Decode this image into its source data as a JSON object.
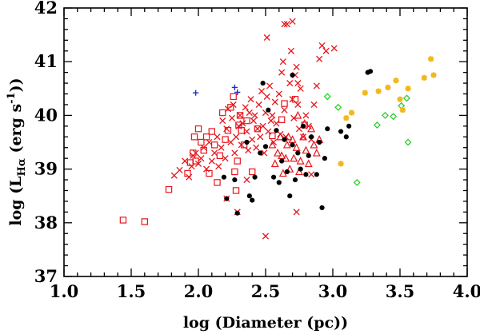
{
  "chart_data": {
    "type": "scatter",
    "title": "",
    "xlabel": "log (Diameter (pc))",
    "ylabel": "log (Lₕα (erg s⁻¹))",
    "ylabel_parts": {
      "prefix": "log (L",
      "sub": "Hα",
      "mid": " (erg s",
      "sup": "-1",
      "suffix": "))"
    },
    "xlim": [
      1.0,
      4.0
    ],
    "ylim": [
      37.0,
      42.0
    ],
    "xticks": [
      1.0,
      1.5,
      2.0,
      2.5,
      3.0,
      3.5,
      4.0
    ],
    "xtick_labels": [
      "1.0",
      "1.5",
      "2.0",
      "2.5",
      "3.0",
      "3.5",
      "4.0"
    ],
    "yticks": [
      37,
      38,
      39,
      40,
      41,
      42
    ],
    "ytick_labels": [
      "37",
      "38",
      "39",
      "40",
      "41",
      "42"
    ],
    "x_minor_step": 0.1,
    "y_minor_step": 0.2,
    "grid": false,
    "series": [
      {
        "name": "red-crosses",
        "marker": "cross",
        "color": "#e8161c",
        "points": [
          [
            1.82,
            38.88
          ],
          [
            1.86,
            38.98
          ],
          [
            1.9,
            39.15
          ],
          [
            1.93,
            38.85
          ],
          [
            1.95,
            39.05
          ],
          [
            1.96,
            39.25
          ],
          [
            1.98,
            39.3
          ],
          [
            2.0,
            39.1
          ],
          [
            2.02,
            39.2
          ],
          [
            2.04,
            39.4
          ],
          [
            2.06,
            39.0
          ],
          [
            2.08,
            39.5
          ],
          [
            2.1,
            39.15
          ],
          [
            2.12,
            39.3
          ],
          [
            2.14,
            39.6
          ],
          [
            2.15,
            39.05
          ],
          [
            2.17,
            39.4
          ],
          [
            2.18,
            39.9
          ],
          [
            2.2,
            39.2
          ],
          [
            2.21,
            39.75
          ],
          [
            2.22,
            40.12
          ],
          [
            2.24,
            39.5
          ],
          [
            2.25,
            39.95
          ],
          [
            2.26,
            40.2
          ],
          [
            2.27,
            39.3
          ],
          [
            2.28,
            39.6
          ],
          [
            2.3,
            39.8
          ],
          [
            2.31,
            40.0
          ],
          [
            2.32,
            39.45
          ],
          [
            2.33,
            39.85
          ],
          [
            2.35,
            40.15
          ],
          [
            2.36,
            39.7
          ],
          [
            2.37,
            39.35
          ],
          [
            2.38,
            40.05
          ],
          [
            2.39,
            40.3
          ],
          [
            2.4,
            39.55
          ],
          [
            2.41,
            39.9
          ],
          [
            2.42,
            40.0
          ],
          [
            2.43,
            39.4
          ],
          [
            2.44,
            39.75
          ],
          [
            2.45,
            40.2
          ],
          [
            2.46,
            39.6
          ],
          [
            2.47,
            40.45
          ],
          [
            2.48,
            39.8
          ],
          [
            2.49,
            39.3
          ],
          [
            2.5,
            40.05
          ],
          [
            2.51,
            40.35
          ],
          [
            2.52,
            39.7
          ],
          [
            2.53,
            40.55
          ],
          [
            2.54,
            39.9
          ],
          [
            2.55,
            40.0
          ],
          [
            2.56,
            39.5
          ],
          [
            2.57,
            40.25
          ],
          [
            2.58,
            39.85
          ],
          [
            2.6,
            40.4
          ],
          [
            2.61,
            39.65
          ],
          [
            2.62,
            40.8
          ],
          [
            2.64,
            40.1
          ],
          [
            2.65,
            39.6
          ],
          [
            2.66,
            41.7
          ],
          [
            2.68,
            40.6
          ],
          [
            2.69,
            41.2
          ],
          [
            2.7,
            40.3
          ],
          [
            2.71,
            39.95
          ],
          [
            2.72,
            40.75
          ],
          [
            2.73,
            40.9
          ],
          [
            2.74,
            40.2
          ],
          [
            2.75,
            39.75
          ],
          [
            2.76,
            40.5
          ],
          [
            2.78,
            39.6
          ],
          [
            2.8,
            40.0
          ],
          [
            2.82,
            39.8
          ],
          [
            2.84,
            39.55
          ],
          [
            2.86,
            40.2
          ],
          [
            2.88,
            40.55
          ],
          [
            2.9,
            41.05
          ],
          [
            2.92,
            41.3
          ],
          [
            2.95,
            41.2
          ],
          [
            3.01,
            41.25
          ],
          [
            2.51,
            41.45
          ],
          [
            2.64,
            41.7
          ],
          [
            2.7,
            41.75
          ],
          [
            2.63,
            41.0
          ],
          [
            2.74,
            40.6
          ],
          [
            2.21,
            38.45
          ],
          [
            2.29,
            38.2
          ],
          [
            2.36,
            38.8
          ],
          [
            2.5,
            37.75
          ],
          [
            2.73,
            38.2
          ],
          [
            2.84,
            38.9
          ]
        ]
      },
      {
        "name": "red-squares",
        "marker": "square",
        "color": "#e8161c",
        "points": [
          [
            1.44,
            38.05
          ],
          [
            1.6,
            38.02
          ],
          [
            1.78,
            38.62
          ],
          [
            1.92,
            38.92
          ],
          [
            1.94,
            39.12
          ],
          [
            1.96,
            39.3
          ],
          [
            1.97,
            39.6
          ],
          [
            1.98,
            39.15
          ],
          [
            2.0,
            39.75
          ],
          [
            2.02,
            39.5
          ],
          [
            2.04,
            39.35
          ],
          [
            2.06,
            39.6
          ],
          [
            2.08,
            38.92
          ],
          [
            2.1,
            39.7
          ],
          [
            2.12,
            39.45
          ],
          [
            2.14,
            38.75
          ],
          [
            2.16,
            39.25
          ],
          [
            2.18,
            40.05
          ],
          [
            2.2,
            39.55
          ],
          [
            2.22,
            39.72
          ],
          [
            2.24,
            40.15
          ],
          [
            2.26,
            40.35
          ],
          [
            2.27,
            38.95
          ],
          [
            2.28,
            38.6
          ],
          [
            2.29,
            39.15
          ],
          [
            2.3,
            39.82
          ],
          [
            2.31,
            40.0
          ],
          [
            2.32,
            39.72
          ],
          [
            2.34,
            39.45
          ],
          [
            2.36,
            39.9
          ],
          [
            2.4,
            38.95
          ],
          [
            2.44,
            39.75
          ],
          [
            2.55,
            39.62
          ],
          [
            2.62,
            39.92
          ],
          [
            2.64,
            40.22
          ],
          [
            2.72,
            40.3
          ],
          [
            2.79,
            39.82
          ]
        ]
      },
      {
        "name": "red-triangles",
        "marker": "triangle",
        "color": "#e8161c",
        "points": [
          [
            2.55,
            39.45
          ],
          [
            2.57,
            39.1
          ],
          [
            2.59,
            39.3
          ],
          [
            2.61,
            39.6
          ],
          [
            2.63,
            38.92
          ],
          [
            2.65,
            39.2
          ],
          [
            2.66,
            39.45
          ],
          [
            2.68,
            39.0
          ],
          [
            2.7,
            39.55
          ],
          [
            2.71,
            39.2
          ],
          [
            2.73,
            39.4
          ],
          [
            2.75,
            38.95
          ],
          [
            2.76,
            39.15
          ],
          [
            2.78,
            39.6
          ],
          [
            2.8,
            39.35
          ],
          [
            2.82,
            39.1
          ],
          [
            2.84,
            39.75
          ],
          [
            2.86,
            39.45
          ],
          [
            2.88,
            39.3
          ],
          [
            2.9,
            39.55
          ],
          [
            2.74,
            40.0
          ],
          [
            2.67,
            39.6
          ],
          [
            2.62,
            39.25
          ],
          [
            2.79,
            39.85
          ]
        ]
      },
      {
        "name": "black-dots",
        "marker": "dot",
        "color": "#000000",
        "points": [
          [
            2.19,
            38.85
          ],
          [
            2.21,
            38.45
          ],
          [
            2.27,
            38.8
          ],
          [
            2.29,
            38.18
          ],
          [
            2.36,
            39.5
          ],
          [
            2.38,
            38.5
          ],
          [
            2.4,
            38.42
          ],
          [
            2.42,
            38.85
          ],
          [
            2.46,
            39.3
          ],
          [
            2.48,
            40.6
          ],
          [
            2.5,
            39.42
          ],
          [
            2.52,
            40.1
          ],
          [
            2.56,
            38.85
          ],
          [
            2.58,
            39.72
          ],
          [
            2.6,
            38.75
          ],
          [
            2.62,
            39.15
          ],
          [
            2.64,
            39.55
          ],
          [
            2.66,
            38.95
          ],
          [
            2.68,
            38.5
          ],
          [
            2.7,
            39.45
          ],
          [
            2.72,
            38.8
          ],
          [
            2.74,
            39.3
          ],
          [
            2.76,
            39.0
          ],
          [
            2.78,
            39.8
          ],
          [
            2.8,
            38.9
          ],
          [
            2.82,
            39.25
          ],
          [
            2.84,
            39.6
          ],
          [
            2.88,
            38.9
          ],
          [
            2.9,
            39.5
          ],
          [
            2.92,
            38.28
          ],
          [
            2.94,
            39.2
          ],
          [
            2.96,
            39.75
          ],
          [
            3.06,
            39.7
          ],
          [
            3.1,
            39.6
          ],
          [
            3.12,
            39.8
          ],
          [
            3.26,
            40.8
          ],
          [
            3.28,
            40.82
          ],
          [
            2.7,
            40.75
          ]
        ]
      },
      {
        "name": "green-diamonds",
        "marker": "diamond",
        "color": "#22cc22",
        "points": [
          [
            2.96,
            40.35
          ],
          [
            3.04,
            40.15
          ],
          [
            3.18,
            38.75
          ],
          [
            3.33,
            39.82
          ],
          [
            3.39,
            40.0
          ],
          [
            3.45,
            39.98
          ],
          [
            3.51,
            40.18
          ],
          [
            3.55,
            40.32
          ],
          [
            3.56,
            39.5
          ]
        ]
      },
      {
        "name": "yellow-asterisks",
        "marker": "asterisk",
        "color": "#f2b71a",
        "points": [
          [
            3.06,
            39.1
          ],
          [
            3.1,
            39.95
          ],
          [
            3.14,
            40.05
          ],
          [
            3.24,
            40.42
          ],
          [
            3.34,
            40.45
          ],
          [
            3.41,
            40.52
          ],
          [
            3.47,
            40.65
          ],
          [
            3.5,
            40.3
          ],
          [
            3.52,
            40.1
          ],
          [
            3.56,
            40.5
          ],
          [
            3.68,
            40.7
          ],
          [
            3.73,
            41.05
          ],
          [
            3.75,
            40.75
          ]
        ]
      },
      {
        "name": "blue-plus",
        "marker": "plus",
        "color": "#1a2fd0",
        "points": [
          [
            1.98,
            40.42
          ],
          [
            2.27,
            40.52
          ],
          [
            2.29,
            40.43
          ]
        ]
      }
    ]
  }
}
